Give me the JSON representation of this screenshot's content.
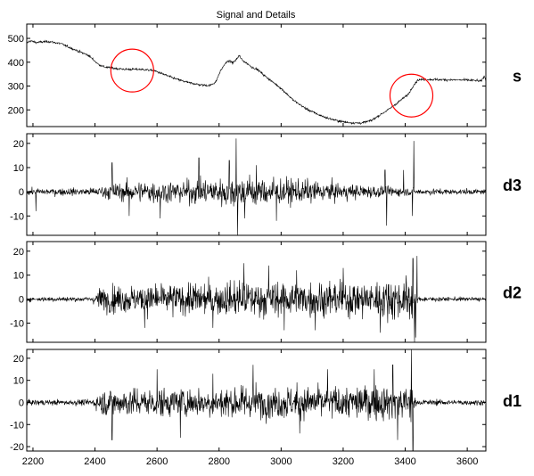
{
  "title": "Signal and Details",
  "chart_data": [
    {
      "type": "line",
      "label": "s",
      "xlim": [
        2180,
        3660
      ],
      "ylim": [
        130,
        560
      ],
      "yticks": [
        200,
        300,
        400,
        500
      ],
      "anchors": [
        [
          2180,
          480
        ],
        [
          2190,
          490
        ],
        [
          2210,
          483
        ],
        [
          2250,
          487
        ],
        [
          2290,
          478
        ],
        [
          2330,
          455
        ],
        [
          2380,
          428
        ],
        [
          2410,
          392
        ],
        [
          2430,
          380
        ],
        [
          2460,
          375
        ],
        [
          2500,
          370
        ],
        [
          2550,
          370
        ],
        [
          2590,
          365
        ],
        [
          2620,
          350
        ],
        [
          2660,
          330
        ],
        [
          2700,
          315
        ],
        [
          2740,
          305
        ],
        [
          2770,
          302
        ],
        [
          2790,
          318
        ],
        [
          2805,
          365
        ],
        [
          2820,
          395
        ],
        [
          2830,
          405
        ],
        [
          2845,
          398
        ],
        [
          2858,
          415
        ],
        [
          2865,
          428
        ],
        [
          2875,
          408
        ],
        [
          2890,
          395
        ],
        [
          2905,
          380
        ],
        [
          2925,
          368
        ],
        [
          2950,
          340
        ],
        [
          3000,
          290
        ],
        [
          3040,
          240
        ],
        [
          3080,
          205
        ],
        [
          3120,
          180
        ],
        [
          3150,
          165
        ],
        [
          3180,
          155
        ],
        [
          3210,
          148
        ],
        [
          3240,
          145
        ],
        [
          3260,
          145
        ],
        [
          3290,
          155
        ],
        [
          3320,
          180
        ],
        [
          3350,
          205
        ],
        [
          3380,
          235
        ],
        [
          3410,
          265
        ],
        [
          3425,
          300
        ],
        [
          3440,
          325
        ],
        [
          3460,
          328
        ],
        [
          3500,
          327
        ],
        [
          3550,
          326
        ],
        [
          3600,
          325
        ],
        [
          3630,
          323
        ],
        [
          3645,
          320
        ],
        [
          3655,
          342
        ],
        [
          3660,
          320
        ]
      ],
      "noise": 4,
      "annotations": [
        {
          "type": "circle",
          "x": 2520,
          "y": 365
        },
        {
          "type": "circle",
          "x": 3420,
          "y": 260
        }
      ]
    },
    {
      "type": "line",
      "label": "d3",
      "xlim": [
        2180,
        3660
      ],
      "ylim": [
        -18,
        24
      ],
      "yticks": [
        -10,
        0,
        10,
        20
      ],
      "envelope": [
        [
          2180,
          2
        ],
        [
          2400,
          2.5
        ],
        [
          2450,
          5
        ],
        [
          2550,
          7
        ],
        [
          2700,
          7
        ],
        [
          2800,
          9
        ],
        [
          2900,
          10
        ],
        [
          3000,
          8
        ],
        [
          3100,
          7
        ],
        [
          3200,
          5
        ],
        [
          3300,
          4
        ],
        [
          3350,
          3
        ],
        [
          3450,
          2
        ],
        [
          3660,
          1.5
        ]
      ],
      "spikes": [
        [
          2855,
          22
        ],
        [
          2860,
          -18
        ],
        [
          2833,
          13
        ],
        [
          2882,
          -11
        ],
        [
          2735,
          14
        ],
        [
          3423,
          -10
        ],
        [
          3428,
          21
        ],
        [
          3340,
          -14
        ],
        [
          3335,
          9
        ],
        [
          2985,
          -12
        ],
        [
          2920,
          11
        ],
        [
          2610,
          -11
        ],
        [
          2510,
          -10
        ],
        [
          2455,
          12
        ],
        [
          3395,
          9
        ],
        [
          2210,
          -8
        ]
      ]
    },
    {
      "type": "line",
      "label": "d2",
      "xlim": [
        2180,
        3660
      ],
      "ylim": [
        -18,
        24
      ],
      "yticks": [
        -10,
        0,
        10,
        20
      ],
      "envelope": [
        [
          2180,
          1.5
        ],
        [
          2390,
          1.5
        ],
        [
          2420,
          8
        ],
        [
          2550,
          9
        ],
        [
          2700,
          10
        ],
        [
          2850,
          11
        ],
        [
          3000,
          11
        ],
        [
          3200,
          11
        ],
        [
          3350,
          12
        ],
        [
          3420,
          14
        ],
        [
          3440,
          1.5
        ],
        [
          3660,
          1.2
        ]
      ],
      "spikes": [
        [
          3430,
          -18
        ],
        [
          3425,
          17
        ],
        [
          3438,
          18
        ],
        [
          3433,
          -16
        ],
        [
          3010,
          -13
        ],
        [
          2780,
          -12
        ],
        [
          3050,
          12
        ],
        [
          2880,
          15
        ],
        [
          3320,
          -14
        ],
        [
          2560,
          -12
        ],
        [
          3200,
          13
        ],
        [
          3110,
          -13
        ],
        [
          2960,
          14
        ]
      ]
    },
    {
      "type": "line",
      "label": "d1",
      "xlim": [
        2180,
        3660
      ],
      "ylim": [
        -22,
        24
      ],
      "yticks": [
        -20,
        -10,
        0,
        10,
        20
      ],
      "envelope": [
        [
          2180,
          1.8
        ],
        [
          2390,
          2
        ],
        [
          2420,
          9
        ],
        [
          2550,
          10
        ],
        [
          2700,
          10
        ],
        [
          2850,
          11
        ],
        [
          3000,
          11
        ],
        [
          3200,
          11
        ],
        [
          3380,
          12
        ],
        [
          3420,
          13
        ],
        [
          3435,
          2
        ],
        [
          3660,
          1.8
        ]
      ],
      "spikes": [
        [
          3420,
          24
        ],
        [
          3425,
          -22
        ],
        [
          2455,
          -17
        ],
        [
          2675,
          -16
        ],
        [
          3375,
          -17
        ],
        [
          3360,
          17
        ],
        [
          2910,
          17
        ],
        [
          3150,
          15
        ],
        [
          3300,
          15
        ],
        [
          2780,
          13
        ],
        [
          2600,
          15
        ],
        [
          3060,
          -14
        ]
      ]
    }
  ],
  "xaxis": {
    "xlim": [
      2180,
      3660
    ],
    "ticks": [
      2200,
      2400,
      2600,
      2800,
      3000,
      3200,
      3400,
      3600
    ]
  }
}
